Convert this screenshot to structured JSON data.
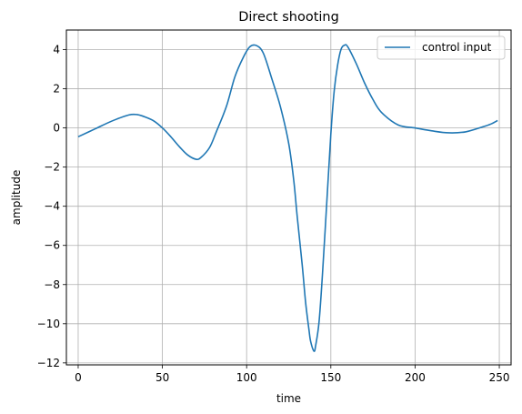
{
  "chart_data": {
    "type": "line",
    "title": "Direct shooting",
    "xlabel": "time",
    "ylabel": "amplitude",
    "xlim": [
      -7,
      257
    ],
    "ylim": [
      -12.1,
      5.0
    ],
    "grid": true,
    "legend_position": "top-right",
    "xticks": [
      0,
      50,
      100,
      150,
      200,
      250
    ],
    "xtick_labels": [
      "0",
      "50",
      "100",
      "150",
      "200",
      "250"
    ],
    "yticks": [
      4,
      2,
      0,
      -2,
      -4,
      -6,
      -8,
      -10,
      -12
    ],
    "ytick_labels": [
      "4",
      "2",
      "0",
      "−2",
      "−4",
      "−6",
      "−8",
      "−10",
      "−12"
    ],
    "series": [
      {
        "name": "control input",
        "color": "#1f77b4",
        "x": [
          0,
          10,
          20,
          30,
          35,
          40,
          45,
          50,
          55,
          60,
          65,
          70,
          73,
          78,
          82,
          88,
          93,
          98,
          102,
          106,
          110,
          115,
          120,
          125,
          128,
          130,
          133,
          135,
          137,
          138,
          140,
          141,
          143,
          145,
          148,
          150,
          152,
          154,
          156,
          158,
          160,
          165,
          170,
          175,
          180,
          190,
          200,
          210,
          220,
          230,
          240,
          245,
          249
        ],
        "y": [
          -0.45,
          -0.05,
          0.35,
          0.66,
          0.68,
          0.55,
          0.35,
          0.0,
          -0.45,
          -0.95,
          -1.38,
          -1.6,
          -1.5,
          -1.0,
          -0.2,
          1.1,
          2.6,
          3.6,
          4.15,
          4.2,
          3.8,
          2.5,
          1.1,
          -0.8,
          -2.7,
          -4.5,
          -7.0,
          -8.9,
          -10.3,
          -10.9,
          -11.4,
          -11.1,
          -9.9,
          -7.5,
          -3.2,
          -0.3,
          1.9,
          3.2,
          4.0,
          4.22,
          4.15,
          3.3,
          2.3,
          1.45,
          0.8,
          0.15,
          0.0,
          -0.15,
          -0.25,
          -0.2,
          0.05,
          0.2,
          0.38
        ]
      }
    ]
  }
}
